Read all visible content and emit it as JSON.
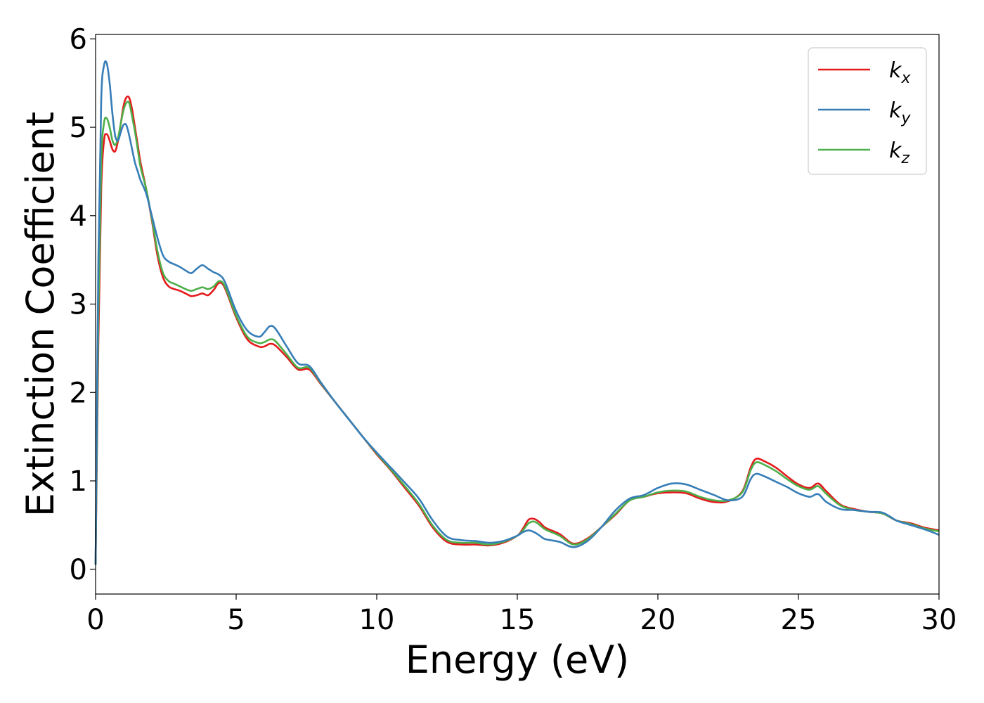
{
  "chart_data": {
    "type": "line",
    "xlabel": "Energy (eV)",
    "ylabel": "Extinction Coefficient",
    "xlim": [
      0,
      30
    ],
    "ylim": [
      -0.28,
      6.05
    ],
    "xticks": [
      0,
      5,
      10,
      15,
      20,
      25,
      30
    ],
    "yticks": [
      0,
      1,
      2,
      3,
      4,
      5,
      6
    ],
    "grid": false,
    "legend_position": "top-right",
    "series": [
      {
        "name": "k_x",
        "legend_base": "k",
        "legend_sub": "x",
        "color": "#e41a1c",
        "x": [
          0,
          0.1,
          0.2,
          0.3,
          0.4,
          0.5,
          0.6,
          0.7,
          0.8,
          0.9,
          1.0,
          1.1,
          1.2,
          1.3,
          1.4,
          1.5,
          1.6,
          1.8,
          2.0,
          2.2,
          2.4,
          2.6,
          2.8,
          3.0,
          3.2,
          3.4,
          3.6,
          3.8,
          4.0,
          4.2,
          4.4,
          4.6,
          5.0,
          5.4,
          5.8,
          6.0,
          6.2,
          6.4,
          6.8,
          7.2,
          7.6,
          8.0,
          8.5,
          9.0,
          9.5,
          10.0,
          10.5,
          11.0,
          11.5,
          12.0,
          12.5,
          13.0,
          13.5,
          14.0,
          14.5,
          15.0,
          15.2,
          15.4,
          15.6,
          15.8,
          16.0,
          16.5,
          17.0,
          17.5,
          18.0,
          18.5,
          19.0,
          19.5,
          20.0,
          20.5,
          21.0,
          21.5,
          22.0,
          22.5,
          23.0,
          23.3,
          23.5,
          23.8,
          24.2,
          24.6,
          25.0,
          25.4,
          25.7,
          26.0,
          26.5,
          27.0,
          27.5,
          28.0,
          28.5,
          29.0,
          29.5,
          30.0
        ],
        "y": [
          0.05,
          2.6,
          4.3,
          4.85,
          4.92,
          4.85,
          4.75,
          4.73,
          4.85,
          5.05,
          5.25,
          5.34,
          5.33,
          5.2,
          5.0,
          4.8,
          4.6,
          4.3,
          3.95,
          3.55,
          3.3,
          3.2,
          3.17,
          3.15,
          3.12,
          3.09,
          3.1,
          3.12,
          3.1,
          3.16,
          3.24,
          3.18,
          2.85,
          2.6,
          2.52,
          2.52,
          2.55,
          2.53,
          2.4,
          2.26,
          2.26,
          2.1,
          1.9,
          1.7,
          1.5,
          1.3,
          1.12,
          0.92,
          0.72,
          0.47,
          0.31,
          0.28,
          0.28,
          0.27,
          0.3,
          0.38,
          0.46,
          0.56,
          0.57,
          0.53,
          0.47,
          0.4,
          0.29,
          0.35,
          0.48,
          0.62,
          0.78,
          0.82,
          0.86,
          0.87,
          0.86,
          0.8,
          0.76,
          0.77,
          0.88,
          1.15,
          1.25,
          1.22,
          1.15,
          1.05,
          0.96,
          0.92,
          0.97,
          0.88,
          0.73,
          0.68,
          0.65,
          0.63,
          0.55,
          0.52,
          0.47,
          0.44
        ]
      },
      {
        "name": "k_y",
        "legend_base": "k",
        "legend_sub": "y",
        "color": "#377eb8",
        "x": [
          0,
          0.1,
          0.2,
          0.3,
          0.4,
          0.5,
          0.6,
          0.7,
          0.8,
          0.9,
          1.0,
          1.1,
          1.2,
          1.3,
          1.4,
          1.5,
          1.6,
          1.8,
          2.0,
          2.2,
          2.4,
          2.6,
          2.8,
          3.0,
          3.2,
          3.4,
          3.6,
          3.8,
          4.0,
          4.2,
          4.4,
          4.6,
          5.0,
          5.4,
          5.8,
          6.0,
          6.2,
          6.4,
          6.8,
          7.2,
          7.6,
          8.0,
          8.5,
          9.0,
          9.5,
          10.0,
          10.5,
          11.0,
          11.5,
          12.0,
          12.5,
          13.0,
          13.5,
          14.0,
          14.5,
          15.0,
          15.2,
          15.4,
          15.6,
          15.8,
          16.0,
          16.5,
          17.0,
          17.5,
          18.0,
          18.5,
          19.0,
          19.5,
          20.0,
          20.5,
          21.0,
          21.5,
          22.0,
          22.5,
          23.0,
          23.3,
          23.5,
          23.8,
          24.2,
          24.6,
          25.0,
          25.4,
          25.7,
          26.0,
          26.5,
          27.0,
          27.5,
          28.0,
          28.5,
          29.0,
          29.5,
          30.0
        ],
        "y": [
          0.05,
          3.5,
          5.3,
          5.7,
          5.72,
          5.5,
          5.15,
          4.9,
          4.85,
          4.95,
          5.03,
          5.02,
          4.9,
          4.75,
          4.6,
          4.5,
          4.4,
          4.25,
          4.0,
          3.75,
          3.55,
          3.48,
          3.45,
          3.42,
          3.38,
          3.35,
          3.4,
          3.44,
          3.4,
          3.36,
          3.33,
          3.25,
          2.92,
          2.7,
          2.63,
          2.68,
          2.75,
          2.72,
          2.52,
          2.33,
          2.3,
          2.12,
          1.9,
          1.7,
          1.5,
          1.32,
          1.15,
          0.98,
          0.8,
          0.55,
          0.37,
          0.33,
          0.32,
          0.3,
          0.32,
          0.38,
          0.42,
          0.44,
          0.42,
          0.38,
          0.34,
          0.31,
          0.25,
          0.32,
          0.48,
          0.67,
          0.8,
          0.84,
          0.92,
          0.97,
          0.96,
          0.9,
          0.84,
          0.78,
          0.82,
          1.02,
          1.08,
          1.05,
          0.99,
          0.93,
          0.86,
          0.82,
          0.85,
          0.76,
          0.68,
          0.67,
          0.65,
          0.64,
          0.55,
          0.5,
          0.45,
          0.39
        ]
      },
      {
        "name": "k_z",
        "legend_base": "k",
        "legend_sub": "z",
        "color": "#4daf4a",
        "x": [
          0,
          0.1,
          0.2,
          0.3,
          0.4,
          0.5,
          0.6,
          0.7,
          0.8,
          0.9,
          1.0,
          1.1,
          1.2,
          1.3,
          1.4,
          1.5,
          1.6,
          1.8,
          2.0,
          2.2,
          2.4,
          2.6,
          2.8,
          3.0,
          3.2,
          3.4,
          3.6,
          3.8,
          4.0,
          4.2,
          4.4,
          4.6,
          5.0,
          5.4,
          5.8,
          6.0,
          6.2,
          6.4,
          6.8,
          7.2,
          7.6,
          8.0,
          8.5,
          9.0,
          9.5,
          10.0,
          10.5,
          11.0,
          11.5,
          12.0,
          12.5,
          13.0,
          13.5,
          14.0,
          14.5,
          15.0,
          15.2,
          15.4,
          15.6,
          15.8,
          16.0,
          16.5,
          17.0,
          17.5,
          18.0,
          18.5,
          19.0,
          19.5,
          20.0,
          20.5,
          21.0,
          21.5,
          22.0,
          22.5,
          23.0,
          23.3,
          23.5,
          23.8,
          24.2,
          24.6,
          25.0,
          25.4,
          25.7,
          26.0,
          26.5,
          27.0,
          27.5,
          28.0,
          28.5,
          29.0,
          29.5,
          30.0
        ],
        "y": [
          0.05,
          2.9,
          4.6,
          5.05,
          5.1,
          5.0,
          4.85,
          4.8,
          4.88,
          5.05,
          5.2,
          5.28,
          5.27,
          5.12,
          4.95,
          4.75,
          4.55,
          4.3,
          3.97,
          3.6,
          3.35,
          3.26,
          3.23,
          3.2,
          3.17,
          3.15,
          3.17,
          3.19,
          3.17,
          3.2,
          3.26,
          3.2,
          2.87,
          2.63,
          2.56,
          2.57,
          2.6,
          2.58,
          2.43,
          2.28,
          2.28,
          2.11,
          1.9,
          1.7,
          1.5,
          1.31,
          1.13,
          0.94,
          0.74,
          0.49,
          0.33,
          0.3,
          0.3,
          0.28,
          0.31,
          0.38,
          0.44,
          0.52,
          0.54,
          0.5,
          0.45,
          0.38,
          0.28,
          0.34,
          0.48,
          0.63,
          0.78,
          0.82,
          0.87,
          0.89,
          0.88,
          0.82,
          0.78,
          0.78,
          0.87,
          1.12,
          1.21,
          1.18,
          1.11,
          1.02,
          0.94,
          0.9,
          0.94,
          0.85,
          0.72,
          0.67,
          0.65,
          0.63,
          0.55,
          0.51,
          0.46,
          0.43
        ]
      }
    ]
  }
}
